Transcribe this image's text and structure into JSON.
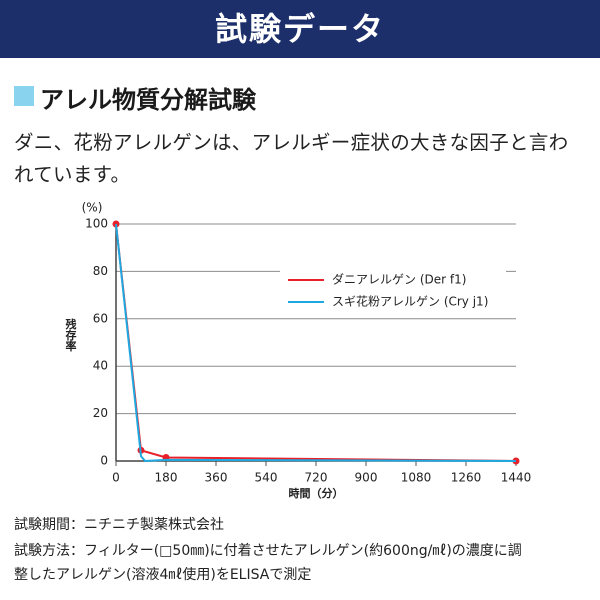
{
  "header": {
    "title": "試験データ"
  },
  "section": {
    "heading": "アレル物質分解試験"
  },
  "description_lines": [
    "ダニ、花粉アレルゲンは、アレルギー症状の大きな因子と言わ",
    "れています。"
  ],
  "chart_data": {
    "type": "line",
    "ylabel": "残存率",
    "y_unit_label": "(%)",
    "xlabel": "時間（分）",
    "xlim": [
      0,
      1440
    ],
    "xticks": [
      0,
      180,
      360,
      540,
      720,
      900,
      1080,
      1260,
      1440
    ],
    "ylim": [
      0,
      100
    ],
    "yticks": [
      0,
      20,
      40,
      60,
      80,
      100
    ],
    "grid": true,
    "legend": "upper right",
    "series": [
      {
        "name": "ダニアレルゲン (Der f1)",
        "color": "#e8202a",
        "markers": true,
        "x": [
          0,
          90,
          180,
          1440
        ],
        "values": [
          100,
          4.5,
          1.5,
          0
        ]
      },
      {
        "name": "スギ花粉アレルゲン (Cry j1)",
        "color": "#1fa8e0",
        "markers": false,
        "x": [
          0,
          90,
          105,
          180,
          1440
        ],
        "values": [
          100,
          2,
          0,
          0.5,
          0
        ]
      }
    ]
  },
  "notes": [
    "試験期間：ニチニチ製薬株式会社",
    "試験方法：フィルター(□50㎜)に付着させたアレルゲン(約600ng/㎖)の濃度に調",
    "整したアレルゲン(溶液4㎖使用)をELISAで測定"
  ]
}
